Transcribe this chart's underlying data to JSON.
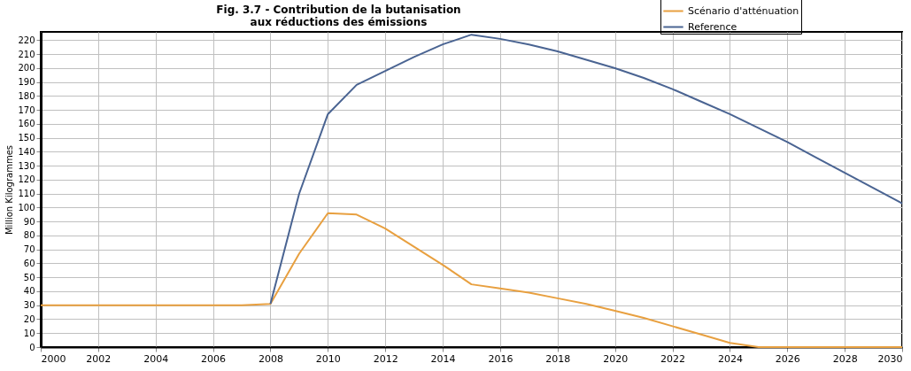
{
  "chart_data": {
    "type": "line",
    "title": [
      "Fig. 3.7 - Contribution de la butanisation",
      "aux réductions des émissions"
    ],
    "ylabel": "Million Kilogrammes",
    "xlim": [
      2000,
      2030
    ],
    "xticks": [
      2000,
      2002,
      2004,
      2006,
      2008,
      2010,
      2012,
      2014,
      2016,
      2018,
      2020,
      2022,
      2024,
      2026,
      2028,
      2030
    ],
    "ylim": [
      0,
      226
    ],
    "yticks": [
      0,
      10,
      20,
      30,
      40,
      50,
      60,
      70,
      80,
      90,
      100,
      110,
      120,
      130,
      140,
      150,
      160,
      170,
      180,
      190,
      200,
      210,
      220
    ],
    "grid": true,
    "legend": "top right",
    "marker": "none",
    "line_style": "solid",
    "series": [
      {
        "name": "Scénario d'atténuation",
        "color": "#e8a040",
        "x": [
          2000,
          2001,
          2002,
          2003,
          2004,
          2005,
          2006,
          2007,
          2008,
          2009,
          2010,
          2011,
          2012,
          2013,
          2014,
          2015,
          2016,
          2017,
          2018,
          2019,
          2020,
          2021,
          2022,
          2023,
          2024,
          2025,
          2026,
          2027,
          2028,
          2029,
          2030
        ],
        "values": [
          30,
          30,
          30,
          30,
          30,
          30,
          30,
          30,
          31,
          67,
          96,
          95,
          85,
          72,
          59,
          45,
          42,
          39,
          35,
          31,
          26,
          21,
          15,
          9,
          3,
          0,
          0,
          0,
          0,
          0,
          0
        ]
      },
      {
        "name": "Reference",
        "color": "#4a6492",
        "x": [
          2008,
          2009,
          2010,
          2011,
          2012,
          2013,
          2014,
          2015,
          2016,
          2017,
          2018,
          2019,
          2020,
          2021,
          2022,
          2023,
          2024,
          2025,
          2026,
          2027,
          2028,
          2029,
          2030
        ],
        "values": [
          31,
          110,
          167,
          188,
          198,
          208,
          217,
          224,
          221,
          217,
          212,
          206,
          200,
          193,
          185,
          176,
          167,
          157,
          147,
          136,
          125,
          114,
          103
        ]
      }
    ]
  }
}
